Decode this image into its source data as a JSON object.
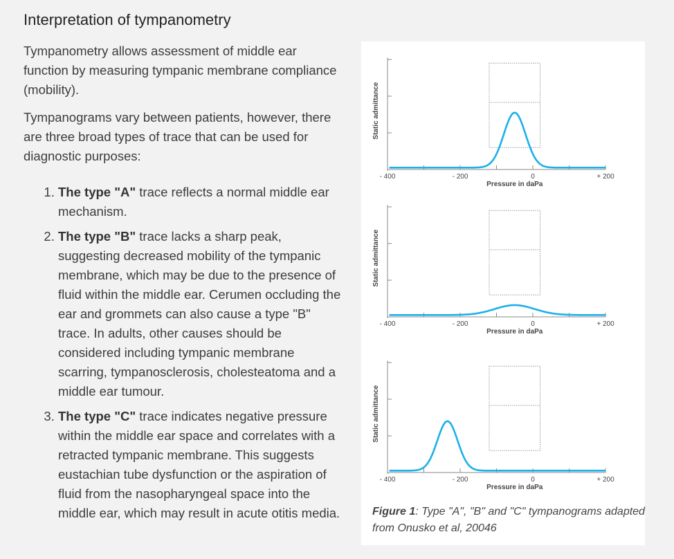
{
  "title": "Interpretation of tympanometry",
  "paragraphs": [
    "Tympanometry allows assessment of middle ear function by measuring tympanic membrane compliance (mobility).",
    "Tympanograms vary between patients, however, there are three broad types of trace that can be used for diagnostic purposes:"
  ],
  "list": [
    {
      "bold": "The type \"A\"",
      "text": " trace reflects a normal middle ear mechanism."
    },
    {
      "bold": "The type \"B\"",
      "text": " trace lacks a sharp peak, suggesting decreased mobility of the tympanic membrane, which may be due to the presence of fluid within the middle ear. Cerumen occluding the ear and grommets can also cause a type \"B\" trace. In adults, other causes should be considered including tympanic membrane scarring, tympanosclerosis, cholesteatoma and a middle ear tumour."
    },
    {
      "bold": "The type \"C\"",
      "text": " trace indicates negative pressure within the middle ear space and correlates with a retracted tympanic membrane. This suggests eustachian tube dysfunction or the aspiration of fluid from the nasopharyngeal space into the middle ear, which may result in acute otitis media."
    }
  ],
  "caption": {
    "bold": "Figure 1",
    "text": ": Type \"A\", \"B\" and \"C\" tympanograms adapted from Onusko et al, 20046"
  },
  "colors": {
    "trace": "#1ab0ea",
    "axis": "#888888"
  },
  "chart_data": [
    {
      "type": "line",
      "name": "Type A",
      "xlabel": "Pressure in daPa",
      "ylabel": "Static admittance",
      "xlim": [
        -400,
        200
      ],
      "xticks": [
        "- 400",
        "- 200",
        "0",
        "+ 200"
      ],
      "ylim": [
        0,
        3
      ],
      "normal_box": {
        "x": [
          -120,
          20
        ],
        "y": [
          0.6,
          2.9
        ],
        "mid": 1.83
      },
      "peak_x": -50,
      "peak_y": 1.55,
      "width": 30,
      "baseline": 0.05
    },
    {
      "type": "line",
      "name": "Type B",
      "xlabel": "Pressure in daPa",
      "ylabel": "Static admittance",
      "xlim": [
        -400,
        200
      ],
      "xticks": [
        "- 400",
        "- 200",
        "0",
        "+ 200"
      ],
      "ylim": [
        0,
        3
      ],
      "normal_box": {
        "x": [
          -120,
          20
        ],
        "y": [
          0.6,
          2.9
        ],
        "mid": 1.83
      },
      "peak_x": -50,
      "peak_y": 0.32,
      "width": 55,
      "baseline": 0.05
    },
    {
      "type": "line",
      "name": "Type C",
      "xlabel": "Pressure in daPa",
      "ylabel": "Static admittance",
      "xlim": [
        -400,
        200
      ],
      "xticks": [
        "- 400",
        "- 200",
        "0",
        "+ 200"
      ],
      "ylim": [
        0,
        3
      ],
      "normal_box": {
        "x": [
          -120,
          20
        ],
        "y": [
          0.6,
          2.9
        ],
        "mid": 1.83
      },
      "peak_x": -235,
      "peak_y": 1.4,
      "width": 28,
      "baseline": 0.05
    }
  ]
}
